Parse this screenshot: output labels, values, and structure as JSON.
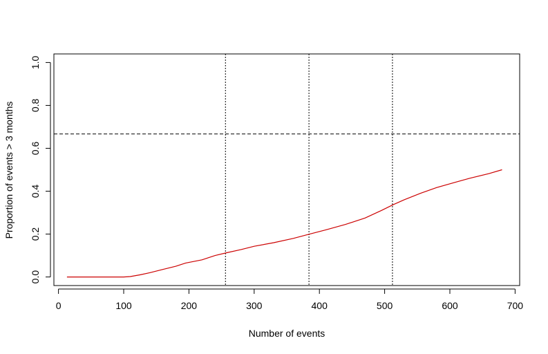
{
  "chart_data": {
    "type": "line",
    "title": "",
    "xlabel": "Number of events",
    "ylabel": "Proportion of events > 3 months",
    "xlim": [
      -7,
      707
    ],
    "ylim": [
      -0.04,
      1.04
    ],
    "xticks": [
      0,
      100,
      200,
      300,
      400,
      500,
      600,
      700
    ],
    "xtick_labels": [
      "0",
      "100",
      "200",
      "300",
      "400",
      "500",
      "600",
      "700"
    ],
    "yticks": [
      0.0,
      0.2,
      0.4,
      0.6,
      0.8,
      1.0
    ],
    "ytick_labels": [
      "0.0",
      "0.2",
      "0.4",
      "0.6",
      "0.8",
      "1.0"
    ],
    "grid": false,
    "series": [
      {
        "color": "#cc0000",
        "x": [
          13,
          50,
          100,
          110,
          125,
          140,
          160,
          180,
          195,
          220,
          240,
          258,
          280,
          300,
          330,
          360,
          385,
          410,
          440,
          470,
          495,
          513,
          530,
          555,
          580,
          610,
          630,
          660,
          680
        ],
        "y": [
          0.0,
          0.0,
          0.0,
          0.002,
          0.01,
          0.02,
          0.035,
          0.05,
          0.065,
          0.08,
          0.1,
          0.113,
          0.128,
          0.143,
          0.16,
          0.18,
          0.2,
          0.22,
          0.245,
          0.275,
          0.31,
          0.337,
          0.36,
          0.39,
          0.417,
          0.443,
          0.46,
          0.482,
          0.5
        ]
      }
    ],
    "reference_lines": [
      {
        "orientation": "horizontal",
        "value": 0.667,
        "style": "dashed",
        "color": "#000000"
      },
      {
        "orientation": "vertical",
        "value": 256,
        "style": "dotted",
        "color": "#000000"
      },
      {
        "orientation": "vertical",
        "value": 384,
        "style": "dotted",
        "color": "#000000"
      },
      {
        "orientation": "vertical",
        "value": 512,
        "style": "dotted",
        "color": "#000000"
      }
    ]
  }
}
